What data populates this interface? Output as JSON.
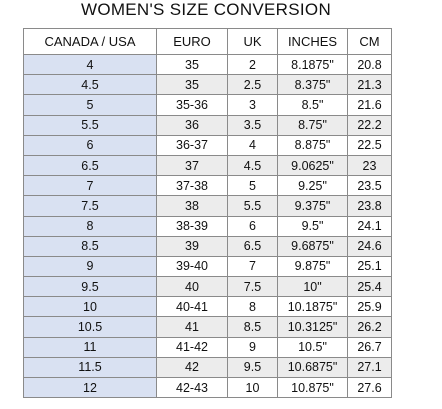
{
  "title": "WOMEN'S SIZE CONVERSION",
  "table": {
    "header": [
      "CANADA / USA",
      "EURO",
      "UK",
      "INCHES",
      "CM"
    ],
    "rows": [
      [
        "4",
        "35",
        "2",
        "8.1875\"",
        "20.8"
      ],
      [
        "4.5",
        "35",
        "2.5",
        "8.375\"",
        "21.3"
      ],
      [
        "5",
        "35-36",
        "3",
        "8.5\"",
        "21.6"
      ],
      [
        "5.5",
        "36",
        "3.5",
        "8.75\"",
        "22.2"
      ],
      [
        "6",
        "36-37",
        "4",
        "8.875\"",
        "22.5"
      ],
      [
        "6.5",
        "37",
        "4.5",
        "9.0625\"",
        "23"
      ],
      [
        "7",
        "37-38",
        "5",
        "9.25\"",
        "23.5"
      ],
      [
        "7.5",
        "38",
        "5.5",
        "9.375\"",
        "23.8"
      ],
      [
        "8",
        "38-39",
        "6",
        "9.5\"",
        "24.1"
      ],
      [
        "8.5",
        "39",
        "6.5",
        "9.6875\"",
        "24.6"
      ],
      [
        "9",
        "39-40",
        "7",
        "9.875\"",
        "25.1"
      ],
      [
        "9.5",
        "40",
        "7.5",
        "10\"",
        "25.4"
      ],
      [
        "10",
        "40-41",
        "8",
        "10.1875\"",
        "25.9"
      ],
      [
        "10.5",
        "41",
        "8.5",
        "10.3125\"",
        "26.2"
      ],
      [
        "11",
        "41-42",
        "9",
        "10.5\"",
        "26.7"
      ],
      [
        "11.5",
        "42",
        "9.5",
        "10.6875\"",
        "27.1"
      ],
      [
        "12",
        "42-43",
        "10",
        "10.875\"",
        "27.6"
      ]
    ]
  }
}
